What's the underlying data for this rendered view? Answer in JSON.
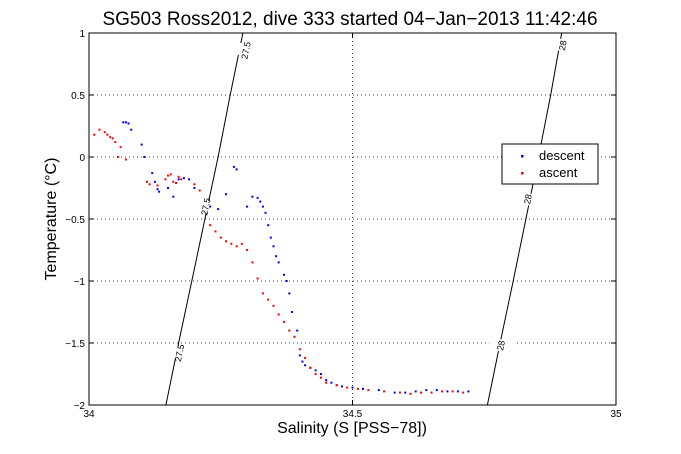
{
  "chart_data": {
    "type": "scatter",
    "title": "SG503 Ross2012, dive 333 started 04−Jan−2013 11:42:46",
    "xlabel": "Salinity (S [PSS−78])",
    "ylabel": "Temperature (°C)",
    "xlim": [
      34,
      35
    ],
    "ylim": [
      -2,
      1
    ],
    "xticks": [
      34,
      34.5,
      35
    ],
    "xtick_labels": [
      "34",
      "34.5",
      "35"
    ],
    "yticks": [
      -2,
      -1.5,
      -1,
      -0.5,
      0,
      0.5,
      1
    ],
    "ytick_labels": [
      "−2",
      "−1.5",
      "−1",
      "−0.5",
      "0",
      "0.5",
      "1"
    ],
    "grid": true,
    "legend": "right",
    "contours": [
      {
        "label": "27.5",
        "points": [
          [
            34.146,
            -2
          ],
          [
            34.17,
            -1.5
          ],
          [
            34.195,
            -1.0
          ],
          [
            34.22,
            -0.5
          ],
          [
            34.245,
            0.0
          ],
          [
            34.268,
            0.5
          ],
          [
            34.292,
            1.0
          ]
        ],
        "label_positions": [
          [
            34.172,
            -1.58
          ],
          [
            34.222,
            -0.4
          ],
          [
            34.298,
            0.86
          ]
        ]
      },
      {
        "label": "28",
        "points": [
          [
            34.756,
            -2
          ],
          [
            34.78,
            -1.5
          ],
          [
            34.805,
            -1.0
          ],
          [
            34.829,
            -0.5
          ],
          [
            34.853,
            0.0
          ],
          [
            34.876,
            0.5
          ],
          [
            34.897,
            1.0
          ]
        ],
        "label_positions": [
          [
            34.782,
            -1.52
          ],
          [
            34.833,
            -0.34
          ],
          [
            34.899,
            0.9
          ]
        ]
      }
    ],
    "series": [
      {
        "name": "descent",
        "color": "#0000ff",
        "points": [
          [
            34.065,
            0.28
          ],
          [
            34.07,
            0.28
          ],
          [
            34.075,
            0.27
          ],
          [
            34.08,
            0.22
          ],
          [
            34.1,
            0.1
          ],
          [
            34.105,
            0.0
          ],
          [
            34.12,
            -0.13
          ],
          [
            34.125,
            -0.2
          ],
          [
            34.13,
            -0.26
          ],
          [
            34.133,
            -0.28
          ],
          [
            34.15,
            -0.25
          ],
          [
            34.16,
            -0.32
          ],
          [
            34.17,
            -0.18
          ],
          [
            34.18,
            -0.17
          ],
          [
            34.19,
            -0.18
          ],
          [
            34.2,
            -0.25
          ],
          [
            34.23,
            -0.4
          ],
          [
            34.245,
            -0.42
          ],
          [
            34.26,
            -0.3
          ],
          [
            34.275,
            -0.08
          ],
          [
            34.28,
            -0.1
          ],
          [
            34.3,
            -0.4
          ],
          [
            34.31,
            -0.32
          ],
          [
            34.32,
            -0.33
          ],
          [
            34.325,
            -0.36
          ],
          [
            34.33,
            -0.4
          ],
          [
            34.335,
            -0.45
          ],
          [
            34.34,
            -0.55
          ],
          [
            34.345,
            -0.65
          ],
          [
            34.35,
            -0.72
          ],
          [
            34.355,
            -0.8
          ],
          [
            34.36,
            -0.85
          ],
          [
            34.37,
            -0.95
          ],
          [
            34.375,
            -1.0
          ],
          [
            34.38,
            -1.1
          ],
          [
            34.385,
            -1.25
          ],
          [
            34.395,
            -1.4
          ],
          [
            34.4,
            -1.6
          ],
          [
            34.405,
            -1.65
          ],
          [
            34.41,
            -1.68
          ],
          [
            34.42,
            -1.7
          ],
          [
            34.43,
            -1.72
          ],
          [
            34.44,
            -1.75
          ],
          [
            34.45,
            -1.8
          ],
          [
            34.46,
            -1.82
          ],
          [
            34.47,
            -1.84
          ],
          [
            34.48,
            -1.85
          ],
          [
            34.5,
            -1.86
          ],
          [
            34.52,
            -1.87
          ],
          [
            34.55,
            -1.88
          ],
          [
            34.58,
            -1.9
          ],
          [
            34.6,
            -1.9
          ],
          [
            34.62,
            -1.89
          ],
          [
            34.64,
            -1.88
          ],
          [
            34.66,
            -1.88
          ],
          [
            34.68,
            -1.89
          ],
          [
            34.7,
            -1.89
          ],
          [
            34.72,
            -1.89
          ]
        ]
      },
      {
        "name": "ascent",
        "color": "#ff0000",
        "points": [
          [
            34.01,
            0.18
          ],
          [
            34.02,
            0.22
          ],
          [
            34.03,
            0.2
          ],
          [
            34.035,
            0.18
          ],
          [
            34.04,
            0.16
          ],
          [
            34.045,
            0.15
          ],
          [
            34.05,
            0.12
          ],
          [
            34.055,
            0.0
          ],
          [
            34.06,
            0.08
          ],
          [
            34.07,
            -0.02
          ],
          [
            34.11,
            -0.2
          ],
          [
            34.115,
            -0.22
          ],
          [
            34.13,
            -0.23
          ],
          [
            34.145,
            -0.18
          ],
          [
            34.15,
            -0.15
          ],
          [
            34.155,
            -0.14
          ],
          [
            34.16,
            -0.2
          ],
          [
            34.165,
            -0.21
          ],
          [
            34.17,
            -0.16
          ],
          [
            34.175,
            -0.18
          ],
          [
            34.2,
            -0.22
          ],
          [
            34.21,
            -0.27
          ],
          [
            34.23,
            -0.55
          ],
          [
            34.24,
            -0.6
          ],
          [
            34.25,
            -0.65
          ],
          [
            34.26,
            -0.68
          ],
          [
            34.27,
            -0.7
          ],
          [
            34.28,
            -0.72
          ],
          [
            34.29,
            -0.7
          ],
          [
            34.3,
            -0.75
          ],
          [
            34.31,
            -0.85
          ],
          [
            34.32,
            -0.98
          ],
          [
            34.33,
            -1.1
          ],
          [
            34.34,
            -1.15
          ],
          [
            34.35,
            -1.2
          ],
          [
            34.36,
            -1.27
          ],
          [
            34.37,
            -1.33
          ],
          [
            34.38,
            -1.4
          ],
          [
            34.39,
            -1.45
          ],
          [
            34.4,
            -1.55
          ],
          [
            34.41,
            -1.62
          ],
          [
            34.42,
            -1.7
          ],
          [
            34.43,
            -1.75
          ],
          [
            34.44,
            -1.78
          ],
          [
            34.45,
            -1.82
          ],
          [
            34.47,
            -1.84
          ],
          [
            34.49,
            -1.86
          ],
          [
            34.51,
            -1.87
          ],
          [
            34.53,
            -1.88
          ],
          [
            34.56,
            -1.89
          ],
          [
            34.59,
            -1.9
          ],
          [
            34.61,
            -1.91
          ],
          [
            34.63,
            -1.9
          ],
          [
            34.65,
            -1.9
          ],
          [
            34.67,
            -1.89
          ],
          [
            34.69,
            -1.89
          ],
          [
            34.71,
            -1.9
          ]
        ]
      }
    ]
  }
}
